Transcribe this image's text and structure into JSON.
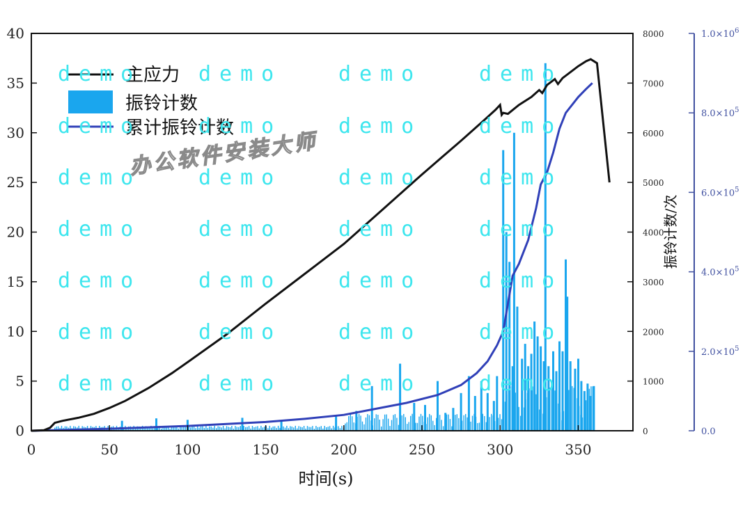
{
  "chart_data": {
    "type": "line",
    "title": "",
    "xlabel": "时间(s)",
    "ylabel": "",
    "ylabel_right": "振铃计数/次",
    "xlim": [
      0,
      385
    ],
    "ylim": [
      0,
      40
    ],
    "ylim_counts": [
      0,
      8000
    ],
    "ylim_cumulative": [
      0,
      1000000
    ],
    "x_ticks": [
      "0",
      "50",
      "100",
      "150",
      "200",
      "250",
      "300",
      "350"
    ],
    "y_ticks": [
      "0",
      "5",
      "10",
      "15",
      "20",
      "25",
      "30",
      "35",
      "40"
    ],
    "counts_ticks": [
      "0",
      "1000",
      "2000",
      "3000",
      "4000",
      "5000",
      "6000",
      "7000",
      "8000"
    ],
    "cumulative_ticks": [
      {
        "base": "0.0",
        "exp": ""
      },
      {
        "base": "2.0×10",
        "exp": "5"
      },
      {
        "base": "4.0×10",
        "exp": "5"
      },
      {
        "base": "6.0×10",
        "exp": "5"
      },
      {
        "base": "8.0×10",
        "exp": "5"
      },
      {
        "base": "1.0×10",
        "exp": "6"
      }
    ],
    "legend": [
      "主应力",
      "振铃计数",
      "累计振铃计数"
    ],
    "legend_position": "top-left",
    "series": [
      {
        "name": "主应力",
        "color": "#111111",
        "axis": "left",
        "points": [
          [
            0,
            0
          ],
          [
            8,
            0.05
          ],
          [
            12,
            0.3
          ],
          [
            15,
            0.8
          ],
          [
            20,
            1.0
          ],
          [
            30,
            1.3
          ],
          [
            40,
            1.7
          ],
          [
            50,
            2.3
          ],
          [
            60,
            3.0
          ],
          [
            75,
            4.3
          ],
          [
            90,
            5.8
          ],
          [
            100,
            6.9
          ],
          [
            125,
            9.7
          ],
          [
            150,
            12.8
          ],
          [
            175,
            15.8
          ],
          [
            200,
            18.8
          ],
          [
            225,
            22.3
          ],
          [
            250,
            25.8
          ],
          [
            275,
            29.2
          ],
          [
            290,
            31.3
          ],
          [
            297,
            32.3
          ],
          [
            300,
            32.8
          ],
          [
            301,
            31.8
          ],
          [
            302,
            32.0
          ],
          [
            305,
            31.9
          ],
          [
            312,
            32.8
          ],
          [
            320,
            33.6
          ],
          [
            325,
            34.3
          ],
          [
            327,
            34.0
          ],
          [
            330,
            34.8
          ],
          [
            335,
            35.4
          ],
          [
            337,
            34.9
          ],
          [
            340,
            35.5
          ],
          [
            350,
            36.7
          ],
          [
            355,
            37.2
          ],
          [
            358,
            37.4
          ],
          [
            362,
            37.0
          ],
          [
            370,
            25.0
          ]
        ]
      },
      {
        "name": "累计振铃计数",
        "color": "#3040b8",
        "axis": "cumulative",
        "points": [
          [
            0,
            0
          ],
          [
            20,
            2000
          ],
          [
            50,
            5000
          ],
          [
            100,
            12000
          ],
          [
            150,
            22000
          ],
          [
            175,
            30000
          ],
          [
            200,
            40000
          ],
          [
            220,
            55000
          ],
          [
            240,
            70000
          ],
          [
            260,
            90000
          ],
          [
            275,
            115000
          ],
          [
            285,
            145000
          ],
          [
            292,
            175000
          ],
          [
            298,
            215000
          ],
          [
            302,
            250000
          ],
          [
            305,
            320000
          ],
          [
            308,
            390000
          ],
          [
            312,
            420000
          ],
          [
            318,
            480000
          ],
          [
            323,
            560000
          ],
          [
            326,
            620000
          ],
          [
            330,
            650000
          ],
          [
            334,
            700000
          ],
          [
            338,
            760000
          ],
          [
            342,
            800000
          ],
          [
            346,
            820000
          ],
          [
            350,
            840000
          ],
          [
            355,
            860000
          ],
          [
            359,
            875000
          ]
        ]
      },
      {
        "name": "振铃计数",
        "color": "#1aa6ee",
        "axis": "counts",
        "bars": [
          [
            58,
            200
          ],
          [
            80,
            250
          ],
          [
            100,
            220
          ],
          [
            135,
            260
          ],
          [
            160,
            200
          ],
          [
            195,
            320
          ],
          [
            208,
            400
          ],
          [
            218,
            900
          ],
          [
            236,
            1350
          ],
          [
            245,
            560
          ],
          [
            252,
            520
          ],
          [
            260,
            1000
          ],
          [
            265,
            360
          ],
          [
            270,
            460
          ],
          [
            275,
            760
          ],
          [
            280,
            1100
          ],
          [
            284,
            700
          ],
          [
            288,
            1000
          ],
          [
            292,
            760
          ],
          [
            296,
            600
          ],
          [
            298,
            1100
          ],
          [
            302,
            5650
          ],
          [
            304,
            4000
          ],
          [
            306,
            3400
          ],
          [
            308,
            1300
          ],
          [
            309,
            6000
          ],
          [
            311,
            2500
          ],
          [
            314,
            1450
          ],
          [
            316,
            1750
          ],
          [
            318,
            1300
          ],
          [
            320,
            1550
          ],
          [
            322,
            2200
          ],
          [
            324,
            1900
          ],
          [
            326,
            1700
          ],
          [
            328,
            1400
          ],
          [
            329,
            7400
          ],
          [
            331,
            1300
          ],
          [
            334,
            1600
          ],
          [
            336,
            1200
          ],
          [
            338,
            1800
          ],
          [
            340,
            1600
          ],
          [
            342,
            3450
          ],
          [
            343,
            2700
          ],
          [
            345,
            1400
          ],
          [
            348,
            1250
          ],
          [
            350,
            1450
          ],
          [
            352,
            1000
          ],
          [
            354,
            800
          ],
          [
            356,
            950
          ],
          [
            358,
            700
          ],
          [
            360,
            900
          ]
        ]
      }
    ],
    "watermark": "demo",
    "brand_text": "办公软件安装大师"
  }
}
